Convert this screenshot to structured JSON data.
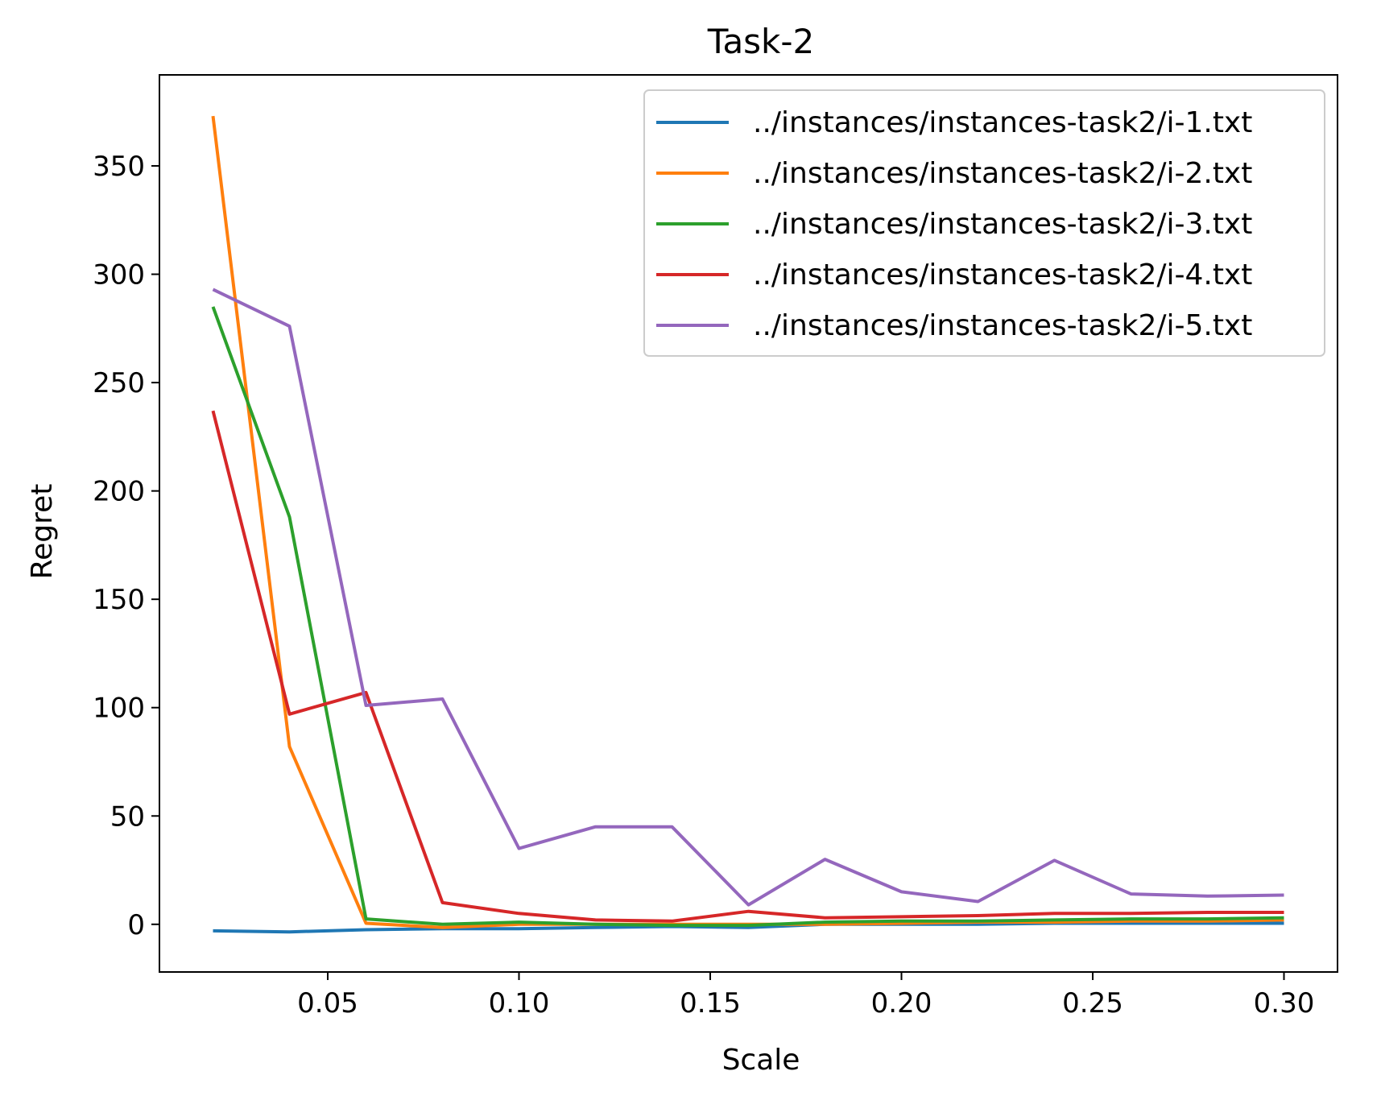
{
  "chart_data": {
    "type": "line",
    "title": "Task-2",
    "xlabel": "Scale",
    "ylabel": "Regret",
    "xlim": [
      0.006,
      0.314
    ],
    "ylim": [
      -22,
      392
    ],
    "xticks": [
      0.05,
      0.1,
      0.15,
      0.2,
      0.25,
      0.3
    ],
    "xtick_labels": [
      "0.05",
      "0.10",
      "0.15",
      "0.20",
      "0.25",
      "0.30"
    ],
    "yticks": [
      0,
      50,
      100,
      150,
      200,
      250,
      300,
      350
    ],
    "ytick_labels": [
      "0",
      "50",
      "100",
      "150",
      "200",
      "250",
      "300",
      "350"
    ],
    "grid": false,
    "legend_position": "top-right",
    "x": [
      0.02,
      0.04,
      0.06,
      0.08,
      0.1,
      0.12,
      0.14,
      0.16,
      0.18,
      0.2,
      0.22,
      0.24,
      0.26,
      0.28,
      0.3
    ],
    "series": [
      {
        "name": "../instances/instances-task2/i-1.txt",
        "color": "#1f77b4",
        "values": [
          -3,
          -3.5,
          -2.5,
          -2,
          -2,
          -1.5,
          -1,
          -1.5,
          0,
          0,
          0,
          0.5,
          0.5,
          0.5,
          0.5
        ]
      },
      {
        "name": "../instances/instances-task2/i-2.txt",
        "color": "#ff7f0e",
        "values": [
          373,
          82,
          0.5,
          -1.5,
          0,
          0,
          0,
          0,
          0,
          0.5,
          1,
          1,
          1.5,
          1.5,
          2
        ]
      },
      {
        "name": "../instances/instances-task2/i-3.txt",
        "color": "#2ca02c",
        "values": [
          285,
          188,
          2.5,
          0,
          1,
          0,
          -0.5,
          -0.5,
          1,
          1.5,
          1.5,
          2,
          2.5,
          2.5,
          3
        ]
      },
      {
        "name": "../instances/instances-task2/i-4.txt",
        "color": "#d62728",
        "values": [
          237,
          97,
          107,
          10,
          5,
          2,
          1.5,
          6,
          3,
          3.5,
          4,
          5,
          5,
          5.5,
          5.5
        ]
      },
      {
        "name": "../instances/instances-task2/i-5.txt",
        "color": "#9467bd",
        "values": [
          293,
          276,
          101,
          104,
          35,
          45,
          45,
          9,
          30,
          15,
          10.5,
          29.5,
          14,
          13,
          13.5
        ]
      }
    ]
  }
}
